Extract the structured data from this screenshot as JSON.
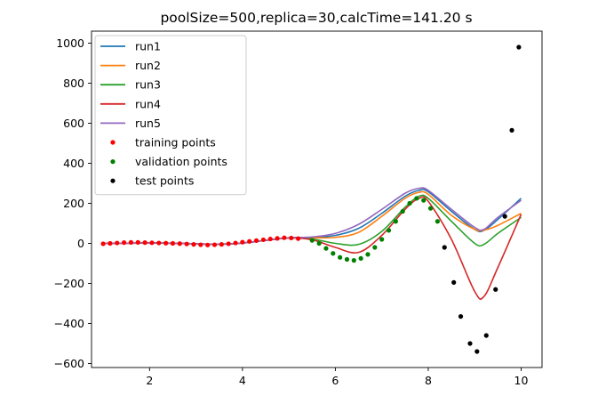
{
  "chart_data": {
    "type": "line",
    "title": "poolSize=500,replica=30,calcTime=141.20 s",
    "xlabel": "",
    "ylabel": "",
    "xlim": [
      0.75,
      10.45
    ],
    "ylim": [
      -620,
      1060
    ],
    "xticks": [
      2,
      4,
      6,
      8,
      10
    ],
    "yticks": [
      -600,
      -400,
      -200,
      0,
      200,
      400,
      600,
      800,
      1000
    ],
    "grid": false,
    "legend_position": "upper-left",
    "x": [
      1.0,
      1.5,
      2.0,
      2.5,
      3.0,
      3.5,
      4.0,
      4.5,
      5.0,
      5.5,
      6.0,
      6.5,
      7.0,
      7.5,
      7.8,
      8.0,
      8.5,
      9.0,
      9.2,
      9.5,
      10.0
    ],
    "series": [
      {
        "name": "run1",
        "kind": "line",
        "color": "#1f77b4",
        "y": [
          0,
          1,
          2,
          1,
          -2,
          -4,
          2,
          15,
          28,
          30,
          40,
          75,
          150,
          235,
          265,
          258,
          160,
          70,
          65,
          120,
          225
        ]
      },
      {
        "name": "run2",
        "kind": "line",
        "color": "#ff7f0e",
        "y": [
          0,
          1,
          2,
          1,
          -2,
          -4,
          2,
          15,
          28,
          28,
          30,
          55,
          135,
          225,
          255,
          245,
          140,
          70,
          66,
          90,
          150
        ]
      },
      {
        "name": "run3",
        "kind": "line",
        "color": "#2ca02c",
        "y": [
          0,
          1,
          2,
          1,
          -2,
          -4,
          2,
          15,
          27,
          22,
          0,
          -5,
          60,
          180,
          235,
          225,
          110,
          0,
          -5,
          50,
          130
        ]
      },
      {
        "name": "run4",
        "kind": "line",
        "color": "#d62728",
        "y": [
          0,
          1,
          2,
          1,
          -2,
          -4,
          2,
          15,
          27,
          18,
          -20,
          -45,
          40,
          170,
          225,
          210,
          20,
          -240,
          -265,
          -120,
          145
        ]
      },
      {
        "name": "run5",
        "kind": "line",
        "color": "#9467bd",
        "y": [
          0,
          1,
          2,
          1,
          -2,
          -4,
          2,
          15,
          28,
          32,
          50,
          95,
          170,
          250,
          275,
          265,
          170,
          80,
          70,
          130,
          215
        ]
      },
      {
        "name": "training points",
        "kind": "scatter",
        "color": "#ff0000",
        "x": [
          1.0,
          1.15,
          1.3,
          1.45,
          1.6,
          1.75,
          1.9,
          2.05,
          2.2,
          2.35,
          2.5,
          2.65,
          2.8,
          2.95,
          3.1,
          3.25,
          3.4,
          3.55,
          3.7,
          3.85,
          4.0,
          4.15,
          4.3,
          4.45,
          4.6,
          4.75,
          4.9,
          5.05,
          5.2
        ],
        "y": [
          -2,
          0,
          2,
          4,
          5,
          5,
          4,
          3,
          2,
          1,
          0,
          -1,
          -3,
          -5,
          -7,
          -8,
          -7,
          -5,
          -2,
          2,
          6,
          10,
          14,
          18,
          22,
          25,
          28,
          27,
          24
        ]
      },
      {
        "name": "validation points",
        "kind": "scatter",
        "color": "#008000",
        "x": [
          5.5,
          5.65,
          5.8,
          5.95,
          6.1,
          6.25,
          6.4,
          6.55,
          6.7,
          6.85,
          7.0,
          7.15,
          7.3,
          7.45,
          7.6,
          7.75,
          7.9,
          8.05,
          8.2
        ],
        "y": [
          15,
          0,
          -25,
          -50,
          -70,
          -80,
          -85,
          -75,
          -55,
          -20,
          20,
          65,
          110,
          160,
          200,
          225,
          215,
          175,
          110
        ]
      },
      {
        "name": "test points",
        "kind": "scatter",
        "color": "#000000",
        "x": [
          8.35,
          8.55,
          8.7,
          8.9,
          9.05,
          9.25,
          9.45,
          9.65,
          9.8,
          9.95
        ],
        "y": [
          -20,
          -195,
          -365,
          -500,
          -540,
          -460,
          -230,
          135,
          565,
          980
        ]
      }
    ]
  }
}
